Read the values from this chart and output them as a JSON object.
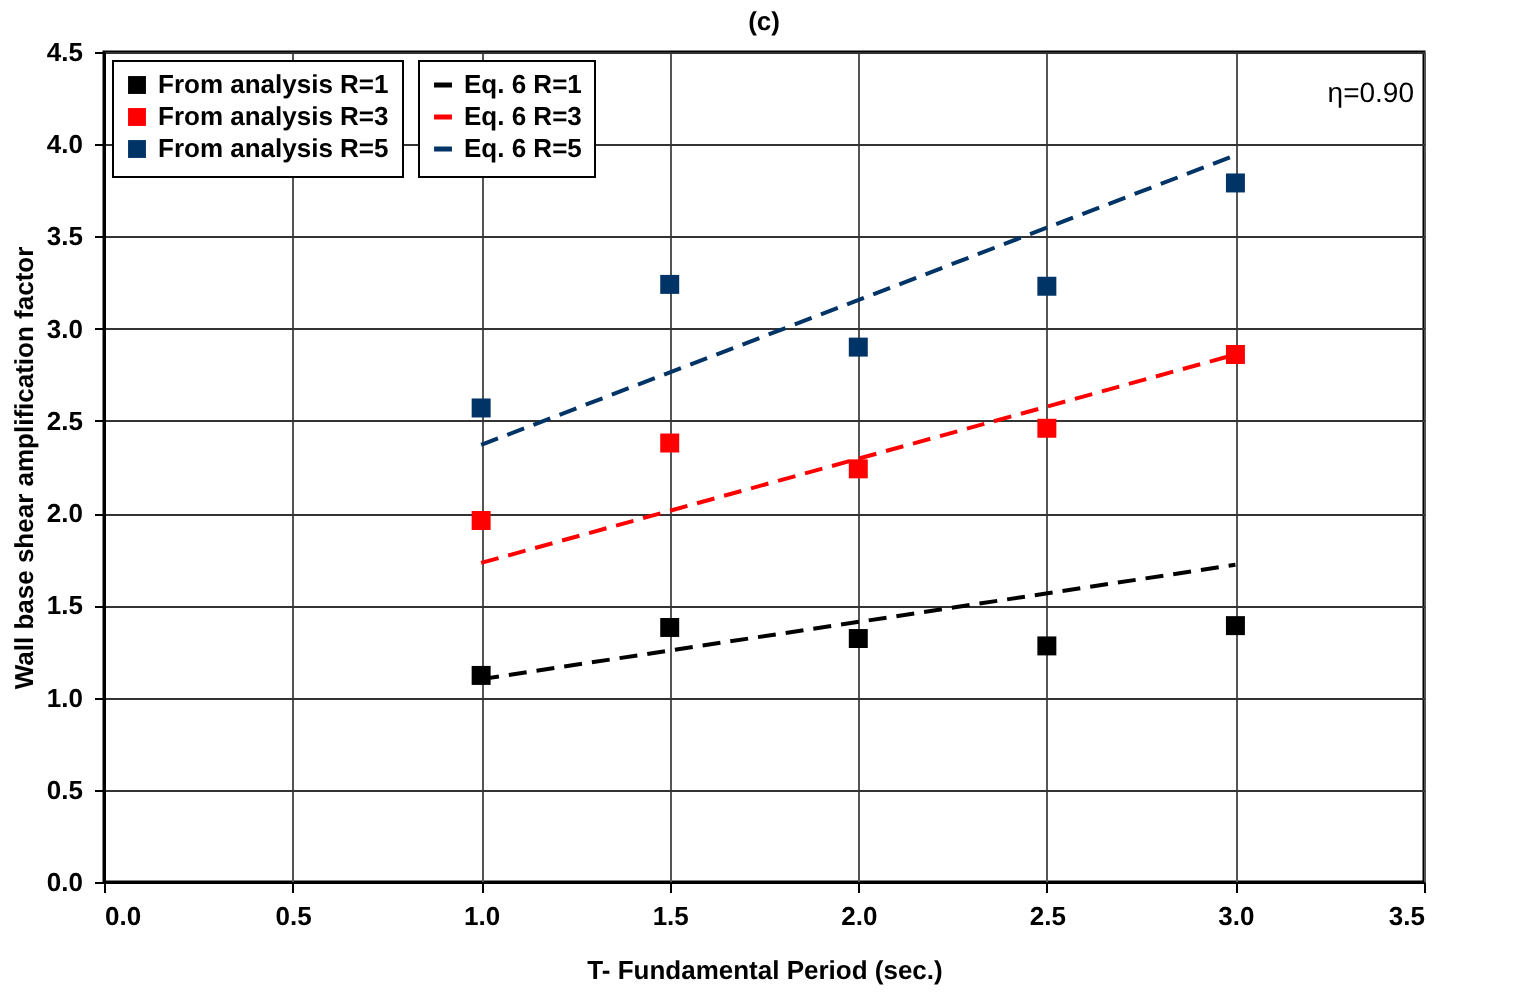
{
  "chart_data": {
    "type": "scatter",
    "title": "(c)",
    "xlabel": "T- Fundamental Period (sec.)",
    "ylabel": "Wall base shear amplification factor",
    "annotations": [
      "η=0.90"
    ],
    "xlim": [
      0,
      3.5
    ],
    "xticks": [
      {
        "value": 0,
        "label": "0.0"
      },
      0.5,
      {
        "value": 1,
        "label": "1.0"
      },
      1.5,
      {
        "value": 2,
        "label": "2.0"
      },
      2.5,
      {
        "value": 3,
        "label": "3.0"
      },
      3.5
    ],
    "ylim": [
      0,
      4.5
    ],
    "yticks": [
      {
        "value": 0,
        "label": "0.0"
      },
      0.5,
      {
        "value": 1,
        "label": "1.0"
      },
      1.5,
      {
        "value": 2,
        "label": "2.0"
      },
      2.5,
      {
        "value": 3,
        "label": "3.0"
      },
      3.5,
      {
        "value": 4,
        "label": "4.0"
      },
      4.5
    ],
    "grid": true,
    "legend": "top left",
    "marker": "square",
    "series": [
      {
        "name": "From analysis R=1",
        "color": "#000000",
        "x": [
          1.0,
          1.5,
          2.0,
          2.5,
          3.0
        ],
        "values": [
          1.12,
          1.38,
          1.32,
          1.28,
          1.39
        ]
      },
      {
        "name": "From analysis R=3",
        "color": "#ff0000",
        "x": [
          1.0,
          1.5,
          2.0,
          2.5,
          3.0
        ],
        "values": [
          1.96,
          2.38,
          2.24,
          2.46,
          2.86
        ]
      },
      {
        "name": "From analysis R=5",
        "color": "#003366",
        "x": [
          1.0,
          1.5,
          2.0,
          2.5,
          3.0
        ],
        "values": [
          2.57,
          3.24,
          2.9,
          3.23,
          3.79
        ]
      },
      {
        "name": "Eq. 6 R=1",
        "type": "line",
        "marker": "none",
        "line_style": "dashed",
        "color": "#000000",
        "x": [
          1.0,
          3.0
        ],
        "values": [
          1.1,
          1.72
        ]
      },
      {
        "name": "Eq. 6 R=3",
        "type": "line",
        "marker": "none",
        "line_style": "dashed",
        "color": "#ff0000",
        "x": [
          1.0,
          3.0
        ],
        "values": [
          1.73,
          2.86
        ]
      },
      {
        "name": "Eq. 6 R=5",
        "type": "line",
        "marker": "none",
        "line_style": "dashed",
        "color": "#003366",
        "x": [
          1.0,
          3.0
        ],
        "values": [
          2.37,
          3.94
        ]
      }
    ]
  }
}
